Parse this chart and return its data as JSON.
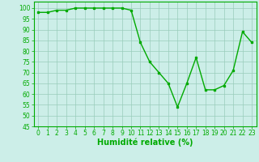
{
  "x": [
    0,
    1,
    2,
    3,
    4,
    5,
    6,
    7,
    8,
    9,
    10,
    11,
    12,
    13,
    14,
    15,
    16,
    17,
    18,
    19,
    20,
    21,
    22,
    23
  ],
  "y": [
    98,
    98,
    99,
    99,
    100,
    100,
    100,
    100,
    100,
    100,
    99,
    84,
    75,
    70,
    65,
    54,
    65,
    77,
    62,
    62,
    64,
    71,
    89,
    84
  ],
  "line_color": "#00aa00",
  "marker": "s",
  "marker_size": 2.0,
  "bg_color": "#cceee8",
  "grid_color": "#99ccbb",
  "xlabel": "Humidité relative (%)",
  "xlabel_color": "#00aa00",
  "ylim": [
    45,
    103
  ],
  "xlim": [
    -0.5,
    23.5
  ],
  "yticks": [
    45,
    50,
    55,
    60,
    65,
    70,
    75,
    80,
    85,
    90,
    95,
    100
  ],
  "xtick_labels": [
    "0",
    "1",
    "2",
    "3",
    "4",
    "5",
    "6",
    "7",
    "8",
    "9",
    "10",
    "11",
    "12",
    "13",
    "14",
    "15",
    "16",
    "17",
    "18",
    "19",
    "20",
    "21",
    "22",
    "23"
  ],
  "tick_fontsize": 5.5,
  "xlabel_fontsize": 7,
  "line_width": 1.0
}
